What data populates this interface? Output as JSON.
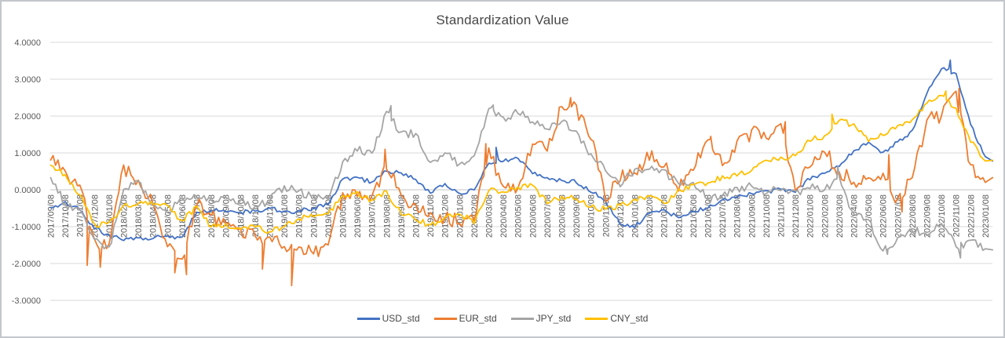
{
  "title": "Standardization Value",
  "colors": {
    "frame_border": "#c3c7cb",
    "grid": "#d9d9d9",
    "zero_axis": "#c4c4c4",
    "tick_text": "#595959",
    "title_text": "#474747",
    "legend_text": "#474747"
  },
  "y_axis": {
    "labels": [
      "4.0000",
      "3.0000",
      "2.0000",
      "1.0000",
      "0.0000",
      "-1.0000",
      "-2.0000",
      "-3.0000"
    ],
    "max": 4,
    "min": -3,
    "step": 1
  },
  "chart_data": {
    "type": "line",
    "title": "Standardization Value",
    "xlabel": "",
    "ylabel": "",
    "ylim": [
      -3,
      4
    ],
    "grid": true,
    "legend_position": "bottom",
    "x": [
      "2017/09/08",
      "2017/10/08",
      "2017/11/08",
      "2017/12/08",
      "2018/01/08",
      "2018/02/08",
      "2018/03/08",
      "2018/04/08",
      "2018/05/08",
      "2018/06/08",
      "2018/07/08",
      "2018/08/08",
      "2018/09/08",
      "2018/10/08",
      "2018/11/08",
      "2018/12/08",
      "2019/01/08",
      "2019/02/08",
      "2019/03/08",
      "2019/04/08",
      "2019/05/08",
      "2019/06/08",
      "2019/07/08",
      "2019/08/08",
      "2019/09/08",
      "2019/10/08",
      "2019/11/08",
      "2019/12/08",
      "2020/01/08",
      "2020/02/08",
      "2020/03/08",
      "2020/04/08",
      "2020/05/08",
      "2020/06/08",
      "2020/07/08",
      "2020/08/08",
      "2020/09/08",
      "2020/10/08",
      "2020/11/08",
      "2020/12/08",
      "2021/01/08",
      "2021/02/08",
      "2021/03/08",
      "2021/04/08",
      "2021/05/08",
      "2021/06/08",
      "2021/07/08",
      "2021/08/08",
      "2021/09/08",
      "2021/10/08",
      "2021/11/08",
      "2021/12/08",
      "2022/01/08",
      "2022/02/08",
      "2022/03/08",
      "2022/04/08",
      "2022/05/08",
      "2022/06/08",
      "2022/07/08",
      "2022/08/08",
      "2022/09/08",
      "2022/10/08",
      "2022/11/08",
      "2022/12/08",
      "2023/01/08"
    ],
    "series": [
      {
        "name": "USD_std",
        "color": "#4472C4",
        "noise": 0.06,
        "tail": 0.78,
        "values": [
          -0.5,
          -0.35,
          -0.55,
          -1.05,
          -1.25,
          -1.35,
          -1.3,
          -1.3,
          -1.25,
          -1.3,
          -0.6,
          -0.55,
          -0.6,
          -0.62,
          -0.57,
          -0.5,
          -0.6,
          -0.58,
          -0.5,
          -0.4,
          0.28,
          0.33,
          0.2,
          0.5,
          0.46,
          0.28,
          -0.08,
          0.15,
          -0.08,
          0.0,
          0.75,
          0.8,
          0.85,
          0.45,
          0.32,
          0.25,
          0.21,
          -0.04,
          -0.3,
          -0.95,
          -1.0,
          -0.65,
          -0.55,
          -0.75,
          -0.6,
          -0.48,
          -0.3,
          -0.2,
          -0.12,
          -0.05,
          0.0,
          -0.05,
          0.3,
          0.45,
          0.65,
          1.05,
          1.3,
          1.0,
          1.3,
          1.6,
          2.6,
          3.3,
          3.15,
          1.75,
          0.9
        ],
        "spikes": [
          [
            30.5,
            1.15
          ],
          [
            61.6,
            3.52
          ]
        ]
      },
      {
        "name": "EUR_std",
        "color": "#ED7D31",
        "noise": 0.2,
        "tail": 0.33,
        "values": [
          0.9,
          0.5,
          0.05,
          -1.35,
          -1.55,
          0.6,
          0.2,
          -0.3,
          -1.55,
          -1.95,
          -0.35,
          -0.7,
          -0.92,
          -1.05,
          -1.28,
          -1.28,
          -1.55,
          -1.55,
          -1.7,
          -1.5,
          -0.12,
          -0.1,
          -0.15,
          0.65,
          -0.15,
          -0.45,
          -0.6,
          -0.78,
          -0.85,
          -0.8,
          1.05,
          0.05,
          0.1,
          1.15,
          1.1,
          2.3,
          2.2,
          1.4,
          -0.25,
          0.3,
          0.55,
          0.9,
          0.7,
          0.0,
          0.6,
          1.4,
          0.7,
          1.25,
          1.55,
          1.4,
          1.8,
          -0.1,
          0.7,
          1.05,
          0.5,
          0.25,
          0.35,
          0.35,
          -0.3,
          0.3,
          1.9,
          2.0,
          2.6,
          0.6,
          0.2
        ],
        "spikes": [
          [
            2.5,
            -2.05
          ],
          [
            3.4,
            -2.1
          ],
          [
            8.5,
            -2.25
          ],
          [
            9.3,
            -2.3
          ],
          [
            14.5,
            -2.15
          ],
          [
            16.5,
            -2.6
          ],
          [
            22.9,
            1.1
          ],
          [
            29.8,
            1.25
          ],
          [
            35.6,
            2.5
          ],
          [
            45.2,
            1.45
          ],
          [
            50.3,
            1.85
          ],
          [
            57.4,
            0.95
          ],
          [
            58.3,
            -0.6
          ],
          [
            62.2,
            2.75
          ]
        ]
      },
      {
        "name": "JPY_std",
        "color": "#A5A5A5",
        "noise": 0.12,
        "tail": -1.63,
        "values": [
          0.35,
          -0.4,
          -0.6,
          -1.35,
          -1.6,
          0.0,
          0.2,
          -0.4,
          -0.6,
          -0.25,
          -0.2,
          -0.25,
          -0.18,
          -0.32,
          -0.46,
          -0.28,
          0.1,
          -0.07,
          -0.18,
          -0.25,
          0.75,
          1.1,
          0.95,
          2.1,
          1.52,
          1.55,
          0.7,
          1.03,
          0.67,
          0.95,
          2.2,
          1.95,
          2.1,
          1.85,
          1.6,
          1.85,
          1.6,
          0.96,
          0.5,
          0.1,
          0.57,
          0.55,
          0.5,
          0.15,
          0.2,
          -0.25,
          -0.15,
          0.05,
          0.1,
          -0.05,
          0.0,
          -0.05,
          0.05,
          0.05,
          0.3,
          -0.7,
          -0.85,
          -1.6,
          -1.35,
          -1.1,
          -1.2,
          -0.9,
          -1.55,
          -1.4,
          -1.6
        ],
        "spikes": [
          [
            23.3,
            2.28
          ],
          [
            30.3,
            2.3
          ],
          [
            53.9,
            0.65
          ],
          [
            57.3,
            -1.75
          ],
          [
            62.3,
            -1.85
          ]
        ]
      },
      {
        "name": "CNY_std",
        "color": "#FFC000",
        "noise": 0.08,
        "tail": 0.8,
        "values": [
          0.7,
          0.4,
          -0.15,
          -0.95,
          -0.9,
          -0.45,
          -0.35,
          -0.4,
          -0.46,
          -0.85,
          -0.46,
          -0.99,
          -0.96,
          -1.06,
          -0.99,
          -1.13,
          -0.99,
          -0.78,
          -0.74,
          -0.67,
          -0.15,
          -0.08,
          -0.28,
          -0.07,
          -0.64,
          -0.78,
          -0.99,
          -0.71,
          -0.64,
          -0.9,
          0.0,
          -0.07,
          0.05,
          0.1,
          -0.35,
          -0.18,
          -0.25,
          -0.46,
          -0.53,
          -0.43,
          -0.28,
          -0.18,
          -0.4,
          0.0,
          0.1,
          0.18,
          0.35,
          0.4,
          0.5,
          0.8,
          0.85,
          0.95,
          1.35,
          1.45,
          1.9,
          1.75,
          1.3,
          1.5,
          1.75,
          1.9,
          2.35,
          2.55,
          2.2,
          1.3,
          0.78
        ],
        "spikes": [
          [
            53.5,
            2.05
          ],
          [
            61.3,
            2.68
          ]
        ]
      }
    ]
  }
}
